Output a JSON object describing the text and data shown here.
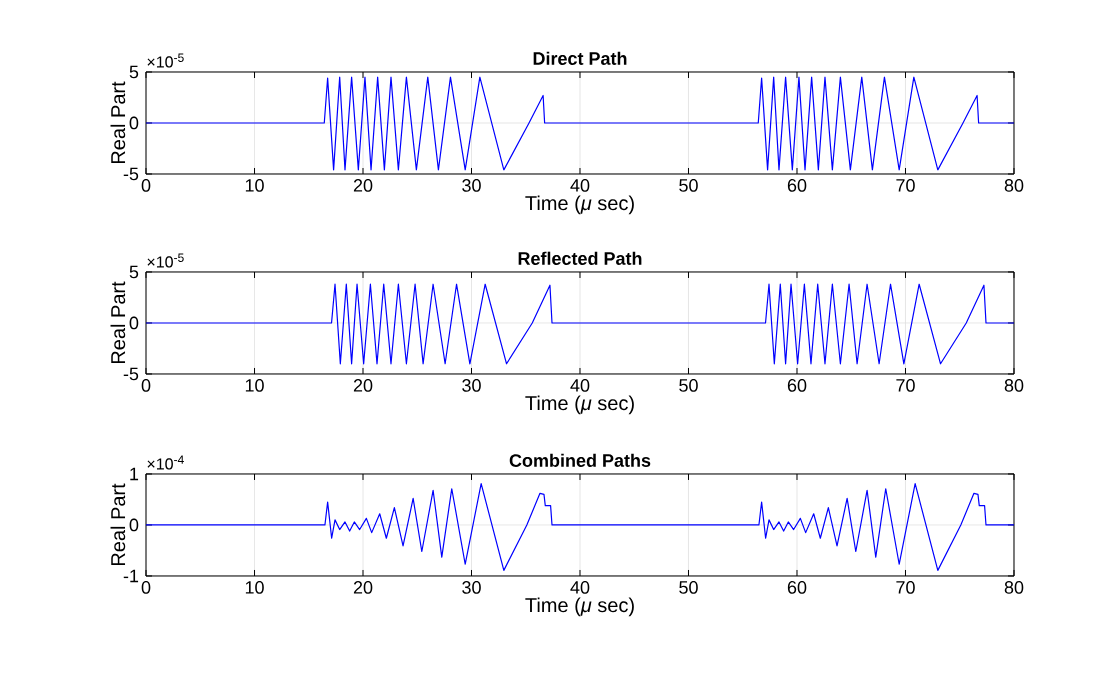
{
  "chart_data": [
    {
      "type": "line",
      "title": "Direct Path",
      "xlabel": "Time (*μ* sec)",
      "ylabel": "Real Part",
      "annotations": [
        "×10$^{-5}$"
      ],
      "color": "#0000ff",
      "grid": true,
      "xlim": [
        0,
        80
      ],
      "xticks": [
        0,
        10,
        20,
        30,
        40,
        50,
        60,
        70,
        80
      ],
      "ylim": [
        -5,
        5
      ],
      "yticks": [
        -5,
        0,
        5
      ],
      "x": [
        0,
        16.43,
        16.74,
        17.29,
        17.85,
        18.34,
        18.95,
        19.57,
        20.18,
        20.74,
        21.35,
        21.97,
        22.58,
        23.26,
        24.0,
        24.92,
        25.97,
        26.95,
        28.06,
        29.42,
        30.77,
        32.98,
        35.3,
        36.6,
        36.74,
        56.43,
        56.74,
        57.29,
        57.85,
        58.34,
        58.95,
        59.57,
        60.18,
        60.74,
        61.35,
        61.97,
        62.58,
        63.26,
        64.0,
        64.92,
        65.97,
        66.95,
        68.06,
        69.42,
        70.77,
        72.98,
        75.3,
        76.6,
        76.74,
        80
      ],
      "values": [
        0,
        0,
        4.4,
        -4.6,
        4.5,
        -4.6,
        4.5,
        -4.6,
        4.5,
        -4.6,
        4.5,
        -4.6,
        4.5,
        -4.6,
        4.5,
        -4.6,
        4.5,
        -4.6,
        4.5,
        -4.6,
        4.5,
        -4.6,
        0,
        2.7,
        0,
        0,
        4.4,
        -4.6,
        4.5,
        -4.6,
        4.5,
        -4.6,
        4.5,
        -4.6,
        4.5,
        -4.6,
        4.5,
        -4.6,
        4.5,
        -4.6,
        4.5,
        -4.6,
        4.5,
        -4.6,
        4.5,
        -4.6,
        0,
        2.7,
        0,
        0
      ]
    },
    {
      "type": "line",
      "title": "Reflected Path",
      "xlabel": "Time (*μ* sec)",
      "ylabel": "Real Part",
      "annotations": [
        "×10$^{-5}$"
      ],
      "color": "#0000ff",
      "grid": true,
      "xlim": [
        0,
        80
      ],
      "xticks": [
        0,
        10,
        20,
        30,
        40,
        50,
        60,
        70,
        80
      ],
      "ylim": [
        -5,
        5
      ],
      "yticks": [
        -5,
        0,
        5
      ],
      "x": [
        0,
        17.1,
        17.42,
        17.91,
        18.46,
        18.95,
        19.45,
        20.06,
        20.68,
        21.29,
        21.91,
        22.58,
        23.26,
        24.0,
        24.8,
        25.54,
        26.46,
        27.57,
        28.62,
        29.85,
        31.26,
        33.23,
        35.6,
        37.23,
        37.42,
        57.1,
        57.42,
        57.91,
        58.46,
        58.95,
        59.45,
        60.06,
        60.68,
        61.29,
        61.91,
        62.58,
        63.26,
        64.0,
        64.8,
        65.54,
        66.46,
        67.57,
        68.62,
        69.85,
        71.26,
        73.23,
        75.6,
        77.23,
        77.42,
        80
      ],
      "values": [
        0,
        0,
        3.8,
        -4,
        3.8,
        -4,
        3.8,
        -4,
        3.8,
        -4,
        3.8,
        -4,
        3.8,
        -4,
        3.8,
        -4,
        3.8,
        -4,
        3.8,
        -4,
        3.8,
        -4,
        0,
        3.7,
        0,
        0,
        3.8,
        -4,
        3.8,
        -4,
        3.8,
        -4,
        3.8,
        -4,
        3.8,
        -4,
        3.8,
        -4,
        3.8,
        -4,
        3.8,
        -4,
        3.8,
        -4,
        3.8,
        -4,
        0,
        3.7,
        0,
        0
      ]
    },
    {
      "type": "line",
      "title": "Combined Paths",
      "xlabel": "Time (*μ* sec)",
      "ylabel": "Real Part",
      "annotations": [
        "×10$^{-4}$"
      ],
      "color": "#0000ff",
      "grid": true,
      "xlim": [
        0,
        80
      ],
      "xticks": [
        0,
        10,
        20,
        30,
        40,
        50,
        60,
        70,
        80
      ],
      "ylim": [
        -1,
        1
      ],
      "yticks": [
        -1,
        0,
        1
      ],
      "x": [
        0,
        16.49,
        16.74,
        17.11,
        17.42,
        17.85,
        18.34,
        18.77,
        19.2,
        19.69,
        20.31,
        20.8,
        21.54,
        22.15,
        22.89,
        23.69,
        24.62,
        25.42,
        26.46,
        27.26,
        28.18,
        29.42,
        30.89,
        32.98,
        35.1,
        36.31,
        36.68,
        36.8,
        37.29,
        37.42,
        56.49,
        56.74,
        57.11,
        57.42,
        57.85,
        58.34,
        58.77,
        59.2,
        59.69,
        60.31,
        60.8,
        61.54,
        62.15,
        62.89,
        63.69,
        64.62,
        65.42,
        66.46,
        67.26,
        68.18,
        69.42,
        70.89,
        72.98,
        75.1,
        76.31,
        76.68,
        76.8,
        77.29,
        77.42,
        80
      ],
      "values": [
        0,
        0,
        0.45,
        -0.26,
        0.1,
        -0.09,
        0.06,
        -0.12,
        0.06,
        -0.09,
        0.13,
        -0.15,
        0.22,
        -0.26,
        0.34,
        -0.41,
        0.52,
        -0.52,
        0.68,
        -0.63,
        0.71,
        -0.77,
        0.81,
        -0.89,
        0,
        0.62,
        0.6,
        0.38,
        0.38,
        0,
        0,
        0.45,
        -0.26,
        0.1,
        -0.09,
        0.06,
        -0.12,
        0.06,
        -0.09,
        0.13,
        -0.15,
        0.22,
        -0.26,
        0.34,
        -0.41,
        0.52,
        -0.52,
        0.68,
        -0.63,
        0.71,
        -0.77,
        0.81,
        -0.89,
        0,
        0.62,
        0.6,
        0.38,
        0.38,
        0,
        0
      ]
    }
  ]
}
